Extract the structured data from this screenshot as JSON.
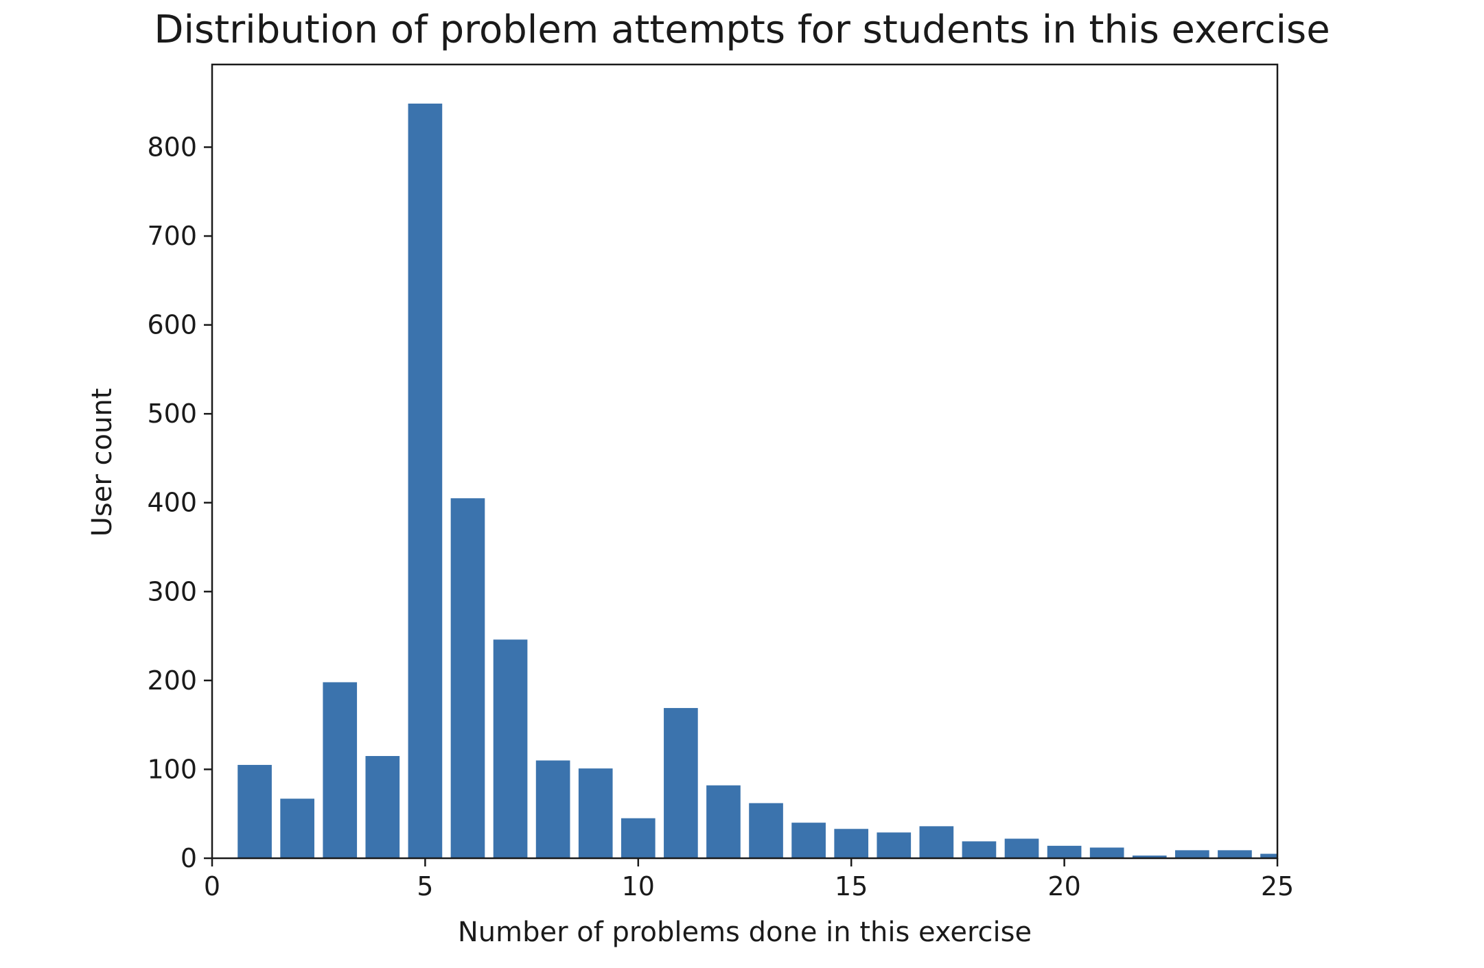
{
  "chart_data": {
    "type": "bar",
    "title": "Distribution of problem attempts for students in this exercise",
    "xlabel": "Number of problems done in this exercise",
    "ylabel": "User count",
    "xlim": [
      0,
      25
    ],
    "ylim": [
      0,
      893
    ],
    "xticks": [
      0,
      5,
      10,
      15,
      20,
      25
    ],
    "yticks": [
      0,
      100,
      200,
      300,
      400,
      500,
      600,
      700,
      800
    ],
    "bar_width": 0.8,
    "bar_color": "#3b73ad",
    "grid": false,
    "x": [
      1,
      2,
      3,
      4,
      5,
      6,
      7,
      8,
      9,
      10,
      11,
      12,
      13,
      14,
      15,
      16,
      17,
      18,
      19,
      20,
      21,
      22,
      23,
      24,
      25
    ],
    "values": [
      105,
      67,
      198,
      115,
      849,
      405,
      246,
      110,
      101,
      45,
      169,
      82,
      62,
      40,
      33,
      29,
      36,
      19,
      22,
      14,
      12,
      3,
      9,
      9,
      5
    ]
  }
}
